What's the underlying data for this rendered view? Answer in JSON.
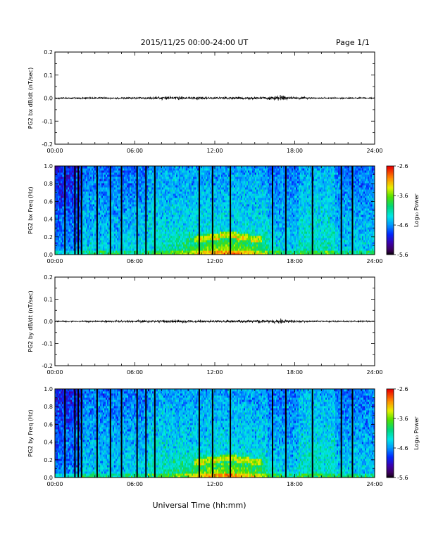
{
  "header": {
    "title": "2015/11/25  00:00-24:00 UT",
    "page": "Page 1/1"
  },
  "chart_data": [
    {
      "type": "line",
      "ylabel": "PG2 bx dB/dt (nT/sec)",
      "ylim": [
        -0.2,
        0.2
      ],
      "yticks": [
        "0.2",
        "0.1",
        "0.0",
        "-0.1",
        "-0.2"
      ],
      "xlim": [
        "00:00",
        "24:00"
      ],
      "xticks": [
        "00:00",
        "06:00",
        "12:00",
        "18:00",
        "24:00"
      ],
      "series": [
        {
          "x": [
            "00:00",
            "01:00",
            "02:00",
            "03:00",
            "04:00",
            "05:00",
            "06:00",
            "07:00",
            "08:00",
            "09:00",
            "10:00",
            "11:00",
            "12:00",
            "13:00",
            "14:00",
            "15:00",
            "16:00",
            "17:00",
            "18:00",
            "19:00",
            "20:00",
            "21:00",
            "22:00",
            "23:00",
            "24:00"
          ],
          "amplitude": [
            0.003,
            0.003,
            0.004,
            0.004,
            0.004,
            0.004,
            0.005,
            0.006,
            0.008,
            0.007,
            0.006,
            0.006,
            0.005,
            0.005,
            0.005,
            0.006,
            0.007,
            0.011,
            0.006,
            0.004,
            0.003,
            0.003,
            0.003,
            0.003,
            0.003
          ]
        }
      ]
    },
    {
      "type": "heatmap",
      "ylabel": "PG2 bx Freq (Hz)",
      "ylim": [
        0.0,
        1.0
      ],
      "yticks": [
        "1.0",
        "0.8",
        "0.6",
        "0.4",
        "0.2",
        "0.0"
      ],
      "xlim": [
        "00:00",
        "24:00"
      ],
      "xticks": [
        "00:00",
        "06:00",
        "12:00",
        "18:00",
        "24:00"
      ],
      "colorbar": {
        "label": "Log₁₀ Power",
        "range": [
          -5.6,
          -2.6
        ],
        "ticks": [
          "-2.6",
          "-3.6",
          "-4.6",
          "-5.6"
        ]
      },
      "gaps": [
        "00:45",
        "01:30",
        "01:45",
        "02:00",
        "03:10",
        "04:10",
        "05:00",
        "06:10",
        "06:50",
        "07:30",
        "10:50",
        "11:50",
        "13:10",
        "16:20",
        "17:20",
        "19:20",
        "21:30",
        "22:20"
      ]
    },
    {
      "type": "line",
      "ylabel": "PG2 by dB/dt (nT/sec)",
      "ylim": [
        -0.2,
        0.2
      ],
      "yticks": [
        "0.2",
        "0.1",
        "0.0",
        "-0.1",
        "-0.2"
      ],
      "xlim": [
        "00:00",
        "24:00"
      ],
      "xticks": [
        "00:00",
        "06:00",
        "12:00",
        "18:00",
        "24:00"
      ],
      "series": [
        {
          "x": [
            "00:00",
            "01:00",
            "02:00",
            "03:00",
            "04:00",
            "05:00",
            "06:00",
            "07:00",
            "08:00",
            "09:00",
            "10:00",
            "11:00",
            "12:00",
            "13:00",
            "14:00",
            "15:00",
            "16:00",
            "17:00",
            "18:00",
            "19:00",
            "20:00",
            "21:00",
            "22:00",
            "23:00",
            "24:00"
          ],
          "amplitude": [
            0.003,
            0.003,
            0.003,
            0.004,
            0.004,
            0.004,
            0.005,
            0.005,
            0.006,
            0.006,
            0.006,
            0.006,
            0.005,
            0.005,
            0.005,
            0.006,
            0.007,
            0.01,
            0.006,
            0.004,
            0.003,
            0.003,
            0.003,
            0.003,
            0.003
          ]
        }
      ]
    },
    {
      "type": "heatmap",
      "ylabel": "PG2 by Freq (Hz)",
      "ylim": [
        0.0,
        1.0
      ],
      "yticks": [
        "1.0",
        "0.8",
        "0.6",
        "0.4",
        "0.2",
        "0.0"
      ],
      "xlim": [
        "00:00",
        "24:00"
      ],
      "xticks": [
        "00:00",
        "06:00",
        "12:00",
        "18:00",
        "24:00"
      ],
      "xlabel": "Universal Time (hh:mm)",
      "colorbar": {
        "label": "Log₁₀ Power",
        "range": [
          -5.6,
          -2.6
        ],
        "ticks": [
          "-2.6",
          "-3.6",
          "-4.6",
          "-5.6"
        ]
      },
      "gaps": [
        "00:45",
        "01:30",
        "01:45",
        "02:00",
        "03:10",
        "04:10",
        "05:00",
        "06:10",
        "06:50",
        "07:30",
        "10:50",
        "11:50",
        "13:10",
        "16:20",
        "17:20",
        "19:20",
        "21:30",
        "22:20"
      ]
    }
  ]
}
